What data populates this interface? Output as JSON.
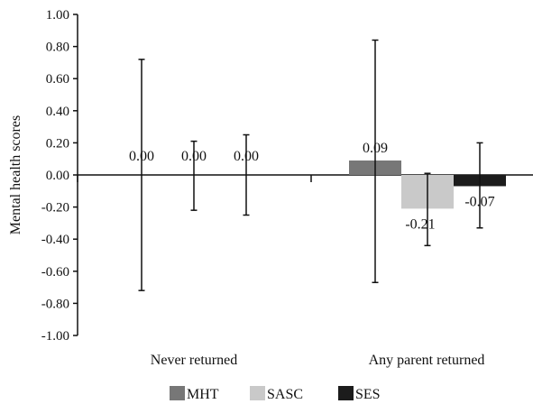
{
  "chart_data": {
    "type": "bar",
    "ylabel": "Mental health scores",
    "xlabel": "",
    "ylim": [
      -1.0,
      1.0
    ],
    "yticks": [
      1.0,
      0.8,
      0.6,
      0.4,
      0.2,
      0.0,
      -0.2,
      -0.4,
      -0.6,
      -0.8,
      -1.0
    ],
    "ytick_labels": [
      "1.00",
      "0.80",
      "0.60",
      "0.40",
      "0.20",
      "0.00",
      "-0.20",
      "-0.40",
      "-0.60",
      "-0.80",
      "-1.00"
    ],
    "categories": [
      "Never returned",
      "Any parent returned"
    ],
    "series": [
      {
        "name": "MHT",
        "color": "#777777",
        "values": [
          0.0,
          0.09
        ],
        "value_labels": [
          "0.00",
          "0.09"
        ],
        "error_low": [
          -0.72,
          -0.67
        ],
        "error_high": [
          0.72,
          0.84
        ]
      },
      {
        "name": "SASC",
        "color": "#c9c9c9",
        "values": [
          0.0,
          -0.21
        ],
        "value_labels": [
          "0.00",
          "-0.21"
        ],
        "error_low": [
          -0.22,
          -0.44
        ],
        "error_high": [
          0.21,
          0.01
        ]
      },
      {
        "name": "SES",
        "color": "#1c1c1c",
        "values": [
          0.0,
          -0.07
        ],
        "value_labels": [
          "0.00",
          "-0.07"
        ],
        "error_low": [
          -0.25,
          -0.33
        ],
        "error_high": [
          0.25,
          0.2
        ]
      }
    ],
    "legend_position": "bottom",
    "grid": false
  }
}
